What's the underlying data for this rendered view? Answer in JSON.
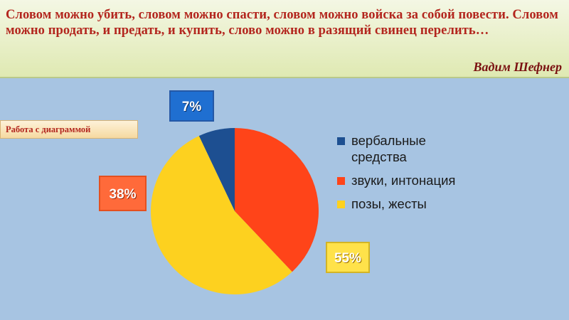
{
  "quote": {
    "text": "Словом можно убить, словом можно спасти, словом можно войска за собой повести. Словом можно продать, и предать, и купить, слово можно в разящий свинец перелить…",
    "author": "Вадим Шефнер"
  },
  "section_label": "Работа с диаграммой",
  "chart_data": {
    "type": "pie",
    "title": "",
    "categories": [
      "вербальные средства",
      "звуки, интонация",
      "позы, жесты"
    ],
    "values": [
      7,
      38,
      55
    ],
    "data_labels": [
      "7%",
      "38%",
      "55%"
    ],
    "colors": [
      "#1d4f91",
      "#ff4419",
      "#fdd11f"
    ],
    "legend_position": "right"
  }
}
